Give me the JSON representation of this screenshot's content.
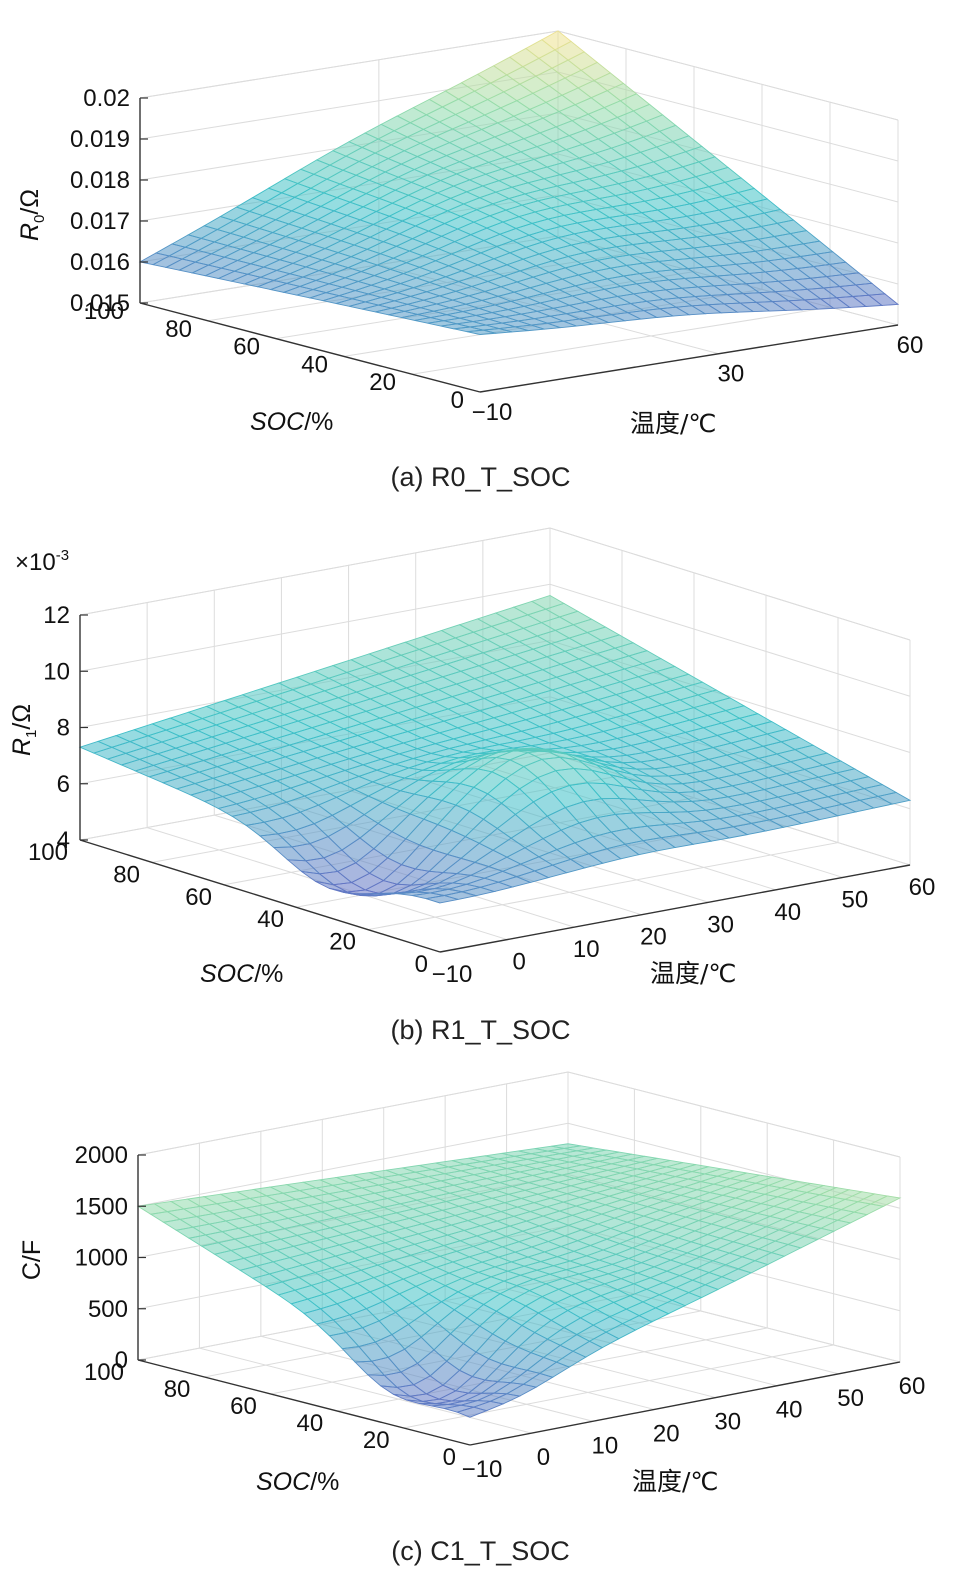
{
  "colors": {
    "low": "#6b5fc0",
    "mid": "#3ec1c8",
    "high": "#f6e28f",
    "grid": "#dcdcdc"
  },
  "chart_data": [
    {
      "type": "surface",
      "caption": "(a) R0_T_SOC",
      "zlabel_main": "R",
      "zlabel_sub": "0",
      "zlabel_unit": "/Ω",
      "exponent": "",
      "ylabel_text": "SOC",
      "ylabel_unit": "/%",
      "xlabel": "温度/℃",
      "x_ticks": [
        "-10",
        "30",
        "60"
      ],
      "x_tick_values": [
        -10,
        30,
        60
      ],
      "y_ticks": [
        "100",
        "80",
        "60",
        "40",
        "20",
        "0"
      ],
      "y_tick_values": [
        100,
        80,
        60,
        40,
        20,
        0
      ],
      "z_ticks": [
        "0.02",
        "0.019",
        "0.018",
        "0.017",
        "0.016",
        "0.015"
      ],
      "z_tick_values": [
        0.02,
        0.019,
        0.018,
        0.017,
        0.016,
        0.015
      ],
      "xlim": [
        -10,
        60
      ],
      "ylim": [
        0,
        100
      ],
      "zlim": [
        0.015,
        0.02
      ],
      "corners": {
        "T-10_SOC100": 0.016,
        "T-10_SOC0": 0.0164,
        "T60_SOC100": 0.02,
        "T60_SOC0": 0.0155
      },
      "features": {
        "center_value": 0.0168,
        "bump_center": [
          25,
          50
        ],
        "bump_amplitude": 0.0004
      }
    },
    {
      "type": "surface",
      "caption": "(b) R1_T_SOC",
      "zlabel_main": "R",
      "zlabel_sub": "1",
      "zlabel_unit": "/Ω",
      "exponent": "×10",
      "exponent_power": "-3",
      "ylabel_text": "SOC",
      "ylabel_unit": "/%",
      "xlabel": "温度/℃",
      "x_ticks": [
        "-10",
        "0",
        "10",
        "20",
        "30",
        "40",
        "50",
        "60"
      ],
      "x_tick_values": [
        -10,
        0,
        10,
        20,
        30,
        40,
        50,
        60
      ],
      "y_ticks": [
        "100",
        "80",
        "60",
        "40",
        "20",
        "0"
      ],
      "y_tick_values": [
        100,
        80,
        60,
        40,
        20,
        0
      ],
      "z_ticks": [
        "12",
        "10",
        "8",
        "6",
        "4"
      ],
      "z_tick_values": [
        12,
        10,
        8,
        6,
        4
      ],
      "xlim": [
        -10,
        60
      ],
      "ylim": [
        0,
        100
      ],
      "zlim": [
        4,
        12
      ],
      "corners": {
        "T-10_SOC100": 7.3,
        "T-10_SOC0": 5.8,
        "T60_SOC100": 9.6,
        "T60_SOC0": 6.3
      },
      "features": {
        "center_value": 8.6,
        "dip_center": [
          -5,
          30
        ],
        "dip_value": 4.4,
        "peak_center": [
          20,
          30
        ],
        "peak_value": 9.8
      }
    },
    {
      "type": "surface",
      "caption": "(c) C1_T_SOC",
      "zlabel_main": "C",
      "zlabel_sub": "",
      "zlabel_unit": "/F",
      "exponent": "",
      "ylabel_text": "SOC",
      "ylabel_unit": "/%",
      "xlabel": "温度/℃",
      "x_ticks": [
        "-10",
        "0",
        "10",
        "20",
        "30",
        "40",
        "50",
        "60"
      ],
      "x_tick_values": [
        -10,
        0,
        10,
        20,
        30,
        40,
        50,
        60
      ],
      "y_ticks": [
        "100",
        "80",
        "60",
        "40",
        "20",
        "0"
      ],
      "y_tick_values": [
        100,
        80,
        60,
        40,
        20,
        0
      ],
      "z_ticks": [
        "2000",
        "1500",
        "1000",
        "500",
        "0"
      ],
      "z_tick_values": [
        2000,
        1500,
        1000,
        500,
        0
      ],
      "xlim": [
        -10,
        60
      ],
      "ylim": [
        0,
        100
      ],
      "zlim": [
        0,
        2000
      ],
      "corners": {
        "T-10_SOC100": 1500,
        "T-10_SOC0": 300,
        "T60_SOC100": 1300,
        "T60_SOC0": 1600
      },
      "features": {
        "center_value": 900,
        "dip_center": [
          -5,
          20
        ],
        "dip_value": 150,
        "peak_center": [
          20,
          30
        ],
        "peak_value": 1100
      }
    }
  ]
}
